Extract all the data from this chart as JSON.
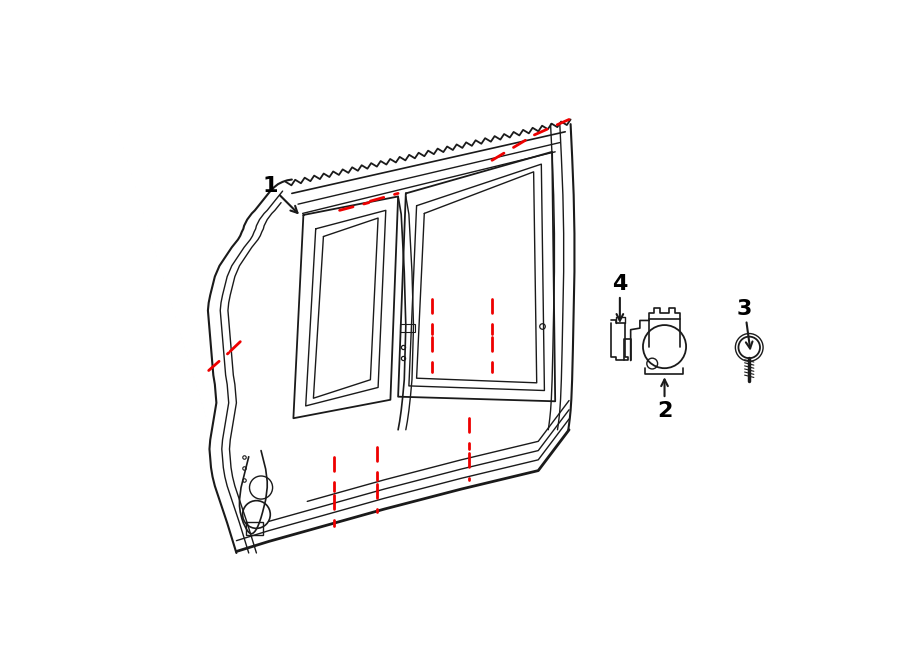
{
  "background_color": "#ffffff",
  "line_color": "#1a1a1a",
  "dashed_color": "#ee0000",
  "label_color": "#000000",
  "figsize": [
    9.0,
    6.62
  ],
  "dpi": 100
}
